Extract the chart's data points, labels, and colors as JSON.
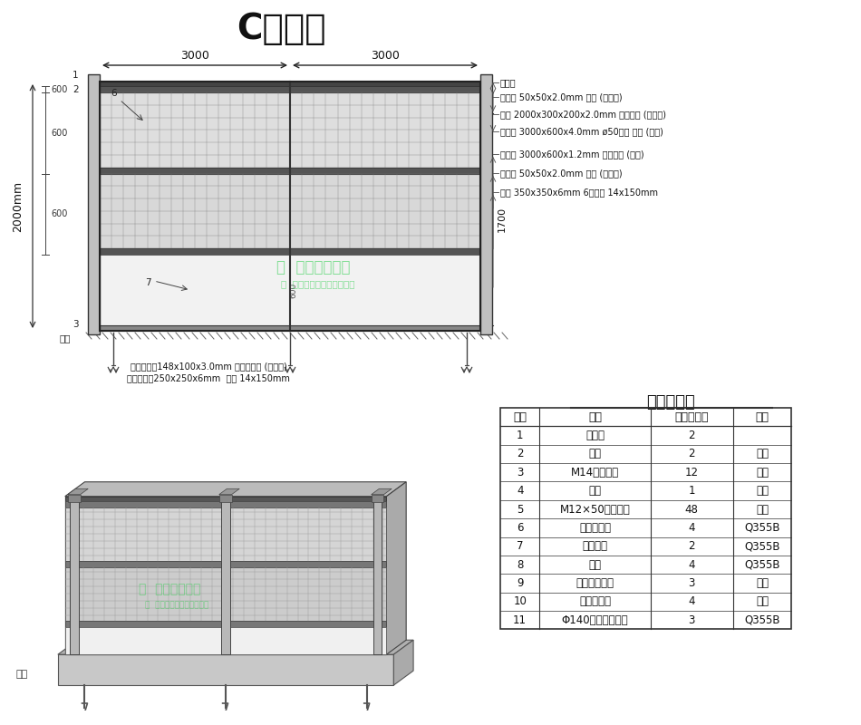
{
  "title": "C型围挡",
  "title_fontsize": 28,
  "background_color": "#ffffff",
  "table_title": "零件明细表",
  "table_headers": [
    "序号",
    "名称",
    "单节段数量",
    "材料"
  ],
  "table_rows": [
    [
      "1",
      "立柱帽",
      "2",
      ""
    ],
    [
      "2",
      "明柱",
      "2",
      "组件"
    ],
    [
      "3",
      "M14螺栓组件",
      "12",
      "组件"
    ],
    [
      "4",
      "暗柱",
      "1",
      "组件"
    ],
    [
      "5",
      "M12×50螺栓组件",
      "48",
      "组件"
    ],
    [
      "6",
      "钢丝网挡板",
      "4",
      "Q355B"
    ],
    [
      "7",
      "预制钢板",
      "2",
      "Q355B"
    ],
    [
      "8",
      "横梁",
      "4",
      "Q355B"
    ],
    [
      "9",
      "立柱基础组件",
      "3",
      "组件"
    ],
    [
      "10",
      "混凝土压块",
      "4",
      "组件"
    ],
    [
      "11",
      "Φ140地锚钢管组件",
      "3",
      "Q355B"
    ]
  ],
  "annotations_right": [
    "成品帽",
    "上横梁 50x50x2.0mm 方通 (深灰色)",
    "立柱 2000x300x200x2.0mm 矩形方钢 (深灰色)",
    "上墙板 3000x600x4.0mm ø50网孔 铁网 (白色)",
    "下墙板 3000x600x1.2mm 烤漆钢板 (白色)",
    "下横梁 50x50x2.0mm 方通 (深灰色)",
    "底板 350x350x6mm 6个拉爆 14x150mm"
  ],
  "bottom_annotations": [
    "中间暗柱：148x100x3.0mm 焊接工字钢 (深灰色)",
    "暗柱底板：250x250x6mm  拉爆 14x150mm"
  ],
  "watermark_line1": "通  深圳大通建设",
  "watermark_line2": "设  新型装配式围挡厂家直销"
}
